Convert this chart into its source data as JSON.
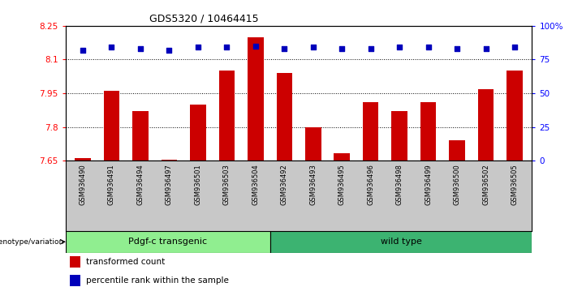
{
  "title": "GDS5320 / 10464415",
  "samples": [
    "GSM936490",
    "GSM936491",
    "GSM936494",
    "GSM936497",
    "GSM936501",
    "GSM936503",
    "GSM936504",
    "GSM936492",
    "GSM936493",
    "GSM936495",
    "GSM936496",
    "GSM936498",
    "GSM936499",
    "GSM936500",
    "GSM936502",
    "GSM936505"
  ],
  "transformed_count": [
    7.66,
    7.96,
    7.87,
    7.655,
    7.9,
    8.05,
    8.2,
    8.04,
    7.8,
    7.685,
    7.91,
    7.87,
    7.91,
    7.74,
    7.97,
    8.05
  ],
  "percentile_rank_pct": [
    82,
    84,
    83,
    82,
    84,
    84,
    85,
    83,
    84,
    83,
    83,
    84,
    84,
    83,
    83,
    84
  ],
  "group_split": 7,
  "group1_label": "Pdgf-c transgenic",
  "group2_label": "wild type",
  "group1_color": "#90EE90",
  "group2_color": "#3CB371",
  "ylim_left": [
    7.65,
    8.25
  ],
  "ylim_right": [
    0,
    100
  ],
  "yticks_left": [
    7.65,
    7.8,
    7.95,
    8.1,
    8.25
  ],
  "yticks_right": [
    0,
    25,
    50,
    75,
    100
  ],
  "ytick_labels_left": [
    "7.65",
    "7.8",
    "7.95",
    "8.1",
    "8.25"
  ],
  "ytick_labels_right": [
    "0",
    "25",
    "50",
    "75",
    "100%"
  ],
  "grid_lines": [
    7.8,
    7.95,
    8.1
  ],
  "bar_color": "#CC0000",
  "dot_color": "#0000BB",
  "genotype_label": "genotype/variation",
  "legend1": "transformed count",
  "legend2": "percentile rank within the sample"
}
